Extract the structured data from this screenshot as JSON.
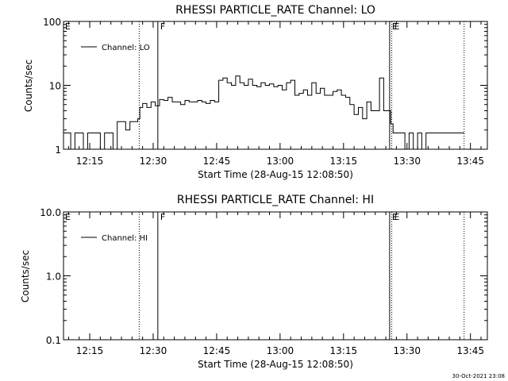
{
  "chart_data": [
    {
      "type": "line",
      "title": "RHESSI PARTICLE_RATE Channel: LO",
      "xlabel": "Start Time (28-Aug-15 12:08:50)",
      "ylabel": "Counts/sec",
      "y_scale": "log",
      "ylim": [
        1,
        100
      ],
      "y_ticks": [
        "1",
        "10",
        "100"
      ],
      "xlim_minutes_of_day": [
        728.8,
        829
      ],
      "x_ticks": [
        "12:15",
        "12:30",
        "12:45",
        "13:00",
        "13:15",
        "13:30",
        "13:45"
      ],
      "grid": false,
      "legend": {
        "position": "top-left",
        "entries": [
          "Channel: LO"
        ]
      },
      "markers": [
        {
          "label": "",
          "time": "12:26.7",
          "style": "dotted"
        },
        {
          "label": "F",
          "time": "12:31.1",
          "style": "solid"
        },
        {
          "label": "E",
          "time": "13:25.9",
          "style": "solid"
        },
        {
          "label": "E",
          "time": "13:26.4",
          "style": "dotted"
        },
        {
          "label": "",
          "time": "13:43.5",
          "style": "dotted"
        }
      ],
      "series": [
        {
          "x": [
            "12:08.8",
            "12:10.0",
            "12:11.0",
            "12:12.0",
            "12:13.0",
            "12:14.0",
            "12:15.0",
            "12:16.0",
            "12:17.0",
            "12:18.0",
            "12:19.0",
            "12:20.0",
            "12:21.0",
            "12:22.0",
            "12:23.0",
            "12:24.0",
            "12:25.0",
            "12:26.0",
            "12:26.7",
            "12:27.0",
            "12:28.0",
            "12:29.0",
            "12:30.0",
            "12:31.0",
            "12:32.0",
            "12:33.0",
            "12:34.0",
            "12:35.0",
            "12:36.0",
            "12:37.0",
            "12:38.0",
            "12:39.0",
            "12:40.0",
            "12:41.0",
            "12:42.0",
            "12:43.0",
            "12:44.0",
            "12:45.0",
            "12:46.0",
            "12:47.0",
            "12:48.0",
            "12:49.0",
            "12:50.0",
            "12:51.0",
            "12:52.0",
            "12:53.0",
            "12:54.0",
            "12:55.0",
            "12:56.0",
            "12:57.0",
            "12:58.0",
            "12:59.0",
            "13:00.0",
            "13:01.0",
            "13:02.0",
            "13:03.0",
            "13:04.0",
            "13:05.0",
            "13:06.0",
            "13:07.0",
            "13:08.0",
            "13:09.0",
            "13:10.0",
            "13:11.0",
            "13:12.0",
            "13:13.0",
            "13:14.0",
            "13:15.0",
            "13:16.0",
            "13:17.0",
            "13:18.0",
            "13:19.0",
            "13:20.0",
            "13:21.0",
            "13:22.0",
            "13:23.0",
            "13:24.0",
            "13:25.0",
            "13:25.9",
            "13:26.4",
            "13:27.0",
            "13:28.0",
            "13:29.0",
            "13:30.0",
            "13:31.0",
            "13:32.0",
            "13:33.0",
            "13:34.0",
            "13:35.0",
            "13:36.0",
            "13:37.0",
            "13:38.0",
            "13:39.0",
            "13:40.0",
            "13:41.0",
            "13:42.0",
            "13:43.5"
          ],
          "values": [
            1.8,
            1.8,
            1.0,
            1.8,
            1.8,
            1.0,
            1.8,
            1.8,
            1.8,
            1.0,
            1.8,
            1.8,
            1.0,
            2.7,
            2.7,
            2.0,
            2.7,
            2.7,
            3.0,
            4.5,
            5.2,
            4.5,
            5.5,
            4.8,
            6.0,
            5.8,
            6.5,
            5.5,
            5.5,
            5.0,
            5.8,
            5.5,
            5.5,
            5.8,
            5.5,
            5.2,
            5.8,
            5.5,
            12.0,
            13.0,
            11.0,
            10.0,
            14.0,
            11.0,
            10.0,
            12.5,
            10.0,
            9.5,
            11.0,
            10.0,
            10.5,
            9.5,
            10.0,
            8.5,
            11.0,
            12.0,
            7.0,
            7.5,
            8.5,
            7.0,
            11.0,
            7.5,
            9.0,
            7.0,
            7.0,
            8.0,
            8.5,
            7.0,
            6.5,
            5.0,
            3.5,
            4.5,
            3.0,
            5.5,
            4.0,
            4.0,
            13.0,
            4.0,
            4.0,
            2.5,
            1.8,
            1.8,
            1.8,
            1.0,
            1.8,
            1.0,
            1.8,
            1.0,
            1.8,
            1.8,
            1.8,
            1.8,
            1.8,
            1.8,
            1.8,
            1.8,
            1.8
          ]
        }
      ]
    },
    {
      "type": "line",
      "title": "RHESSI PARTICLE_RATE Channel: HI",
      "xlabel": "Start Time (28-Aug-15 12:08:50)",
      "ylabel": "Counts/sec",
      "y_scale": "log",
      "ylim": [
        0.1,
        10.0
      ],
      "y_ticks": [
        "0.1",
        "1.0",
        "10.0"
      ],
      "xlim_minutes_of_day": [
        728.8,
        829
      ],
      "x_ticks": [
        "12:15",
        "12:30",
        "12:45",
        "13:00",
        "13:15",
        "13:30",
        "13:45"
      ],
      "grid": false,
      "legend": {
        "position": "top-left",
        "entries": [
          "Channel: HI"
        ]
      },
      "markers": [
        {
          "label": "",
          "time": "12:26.7",
          "style": "dotted"
        },
        {
          "label": "F",
          "time": "12:31.1",
          "style": "solid"
        },
        {
          "label": "E",
          "time": "13:25.9",
          "style": "solid"
        },
        {
          "label": "E",
          "time": "13:26.4",
          "style": "dotted"
        },
        {
          "label": "",
          "time": "13:43.5",
          "style": "dotted"
        }
      ],
      "series": [
        {
          "x": [],
          "values": []
        }
      ]
    }
  ],
  "footer": {
    "timestamp": "30-Oct-2021 23:08"
  }
}
